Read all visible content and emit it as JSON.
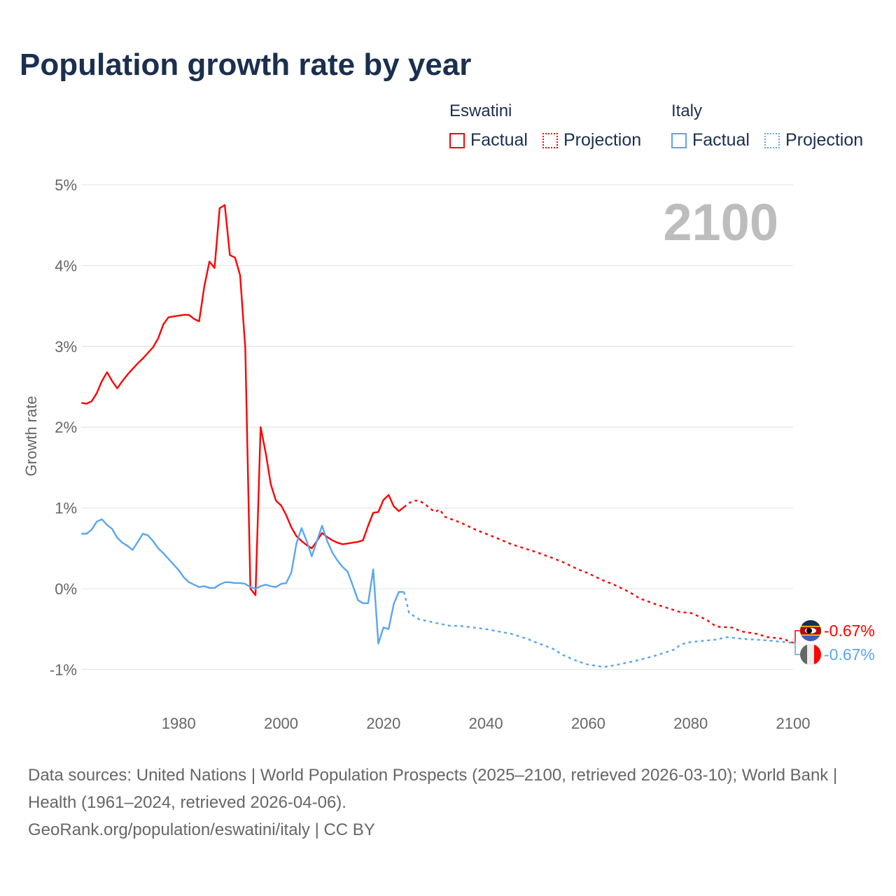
{
  "title": "Population growth rate by year",
  "legend": {
    "groups": [
      {
        "name": "Eswatini",
        "color": "#ff0000",
        "factual": "Factual",
        "projection": "Projection"
      },
      {
        "name": "Italy",
        "color": "#5aa6ee",
        "factual": "Factual",
        "projection": "Projection"
      }
    ]
  },
  "current_year": "2100",
  "end_labels": [
    {
      "country": "Eswatini",
      "value": "-0.67%",
      "color": "#ff0000"
    },
    {
      "country": "Italy",
      "value": "-0.67%",
      "color": "#5aa6ee"
    }
  ],
  "footer": {
    "sources": "Data sources: United Nations | World Population Prospects (2025–2100, retrieved 2026-03-10); World Bank | Health (1961–2024, retrieved 2026-04-06).",
    "credit": "GeoRank.org/population/eswatini/italy | CC BY"
  },
  "chart_data": {
    "type": "line",
    "title": "Population growth rate by year",
    "xlabel": "",
    "ylabel": "Growth rate",
    "xlim": [
      1961,
      2100
    ],
    "ylim": [
      -1,
      5
    ],
    "x_ticks": [
      "1980",
      "2000",
      "2020",
      "2040",
      "2060",
      "2080",
      "2100"
    ],
    "y_ticks": [
      "-1%",
      "0%",
      "1%",
      "2%",
      "3%",
      "4%",
      "5%"
    ],
    "grid": true,
    "legend_position": "top-right",
    "series": [
      {
        "name": "Eswatini Factual",
        "color": "#ff0000",
        "dashed": false,
        "x": [
          1961,
          1962,
          1963,
          1964,
          1965,
          1966,
          1967,
          1968,
          1969,
          1970,
          1971,
          1972,
          1973,
          1974,
          1975,
          1976,
          1977,
          1978,
          1979,
          1980,
          1981,
          1982,
          1983,
          1984,
          1985,
          1986,
          1987,
          1988,
          1989,
          1990,
          1991,
          1992,
          1993,
          1994,
          1995,
          1996,
          1997,
          1998,
          1999,
          2000,
          2001,
          2002,
          2003,
          2004,
          2005,
          2006,
          2007,
          2008,
          2009,
          2010,
          2011,
          2012,
          2013,
          2014,
          2015,
          2016,
          2017,
          2018,
          2019,
          2020,
          2021,
          2022,
          2023,
          2024
        ],
        "y": [
          2.3,
          2.29,
          2.32,
          2.42,
          2.57,
          2.68,
          2.57,
          2.48,
          2.57,
          2.65,
          2.72,
          2.79,
          2.85,
          2.92,
          2.99,
          3.1,
          3.27,
          3.36,
          3.37,
          3.38,
          3.39,
          3.39,
          3.34,
          3.31,
          3.74,
          4.05,
          3.97,
          4.71,
          4.75,
          4.13,
          4.1,
          3.88,
          2.98,
          0.0,
          -0.08,
          2.0,
          1.68,
          1.29,
          1.09,
          1.03,
          0.91,
          0.76,
          0.65,
          0.59,
          0.54,
          0.5,
          0.59,
          0.69,
          0.64,
          0.6,
          0.57,
          0.55,
          0.56,
          0.57,
          0.58,
          0.6,
          0.78,
          0.94,
          0.95,
          1.1,
          1.16,
          1.02,
          0.96,
          1.01
        ]
      },
      {
        "name": "Eswatini Projection",
        "color": "#ff0000",
        "dashed": true,
        "x": [
          2024,
          2025,
          2026,
          2027,
          2028,
          2029,
          2030,
          2031,
          2032,
          2035,
          2038,
          2040,
          2042,
          2045,
          2048,
          2050,
          2053,
          2055,
          2058,
          2060,
          2063,
          2065,
          2068,
          2070,
          2073,
          2075,
          2078,
          2080,
          2083,
          2085,
          2088,
          2090,
          2093,
          2095,
          2098,
          2100
        ],
        "y": [
          1.01,
          1.06,
          1.09,
          1.09,
          1.05,
          1.0,
          0.95,
          0.98,
          0.89,
          0.82,
          0.73,
          0.68,
          0.63,
          0.55,
          0.49,
          0.45,
          0.38,
          0.33,
          0.24,
          0.19,
          0.1,
          0.05,
          -0.04,
          -0.12,
          -0.19,
          -0.23,
          -0.29,
          -0.3,
          -0.38,
          -0.47,
          -0.48,
          -0.53,
          -0.56,
          -0.6,
          -0.62,
          -0.67
        ]
      },
      {
        "name": "Italy Factual",
        "color": "#5aa6ee",
        "dashed": false,
        "x": [
          1961,
          1962,
          1963,
          1964,
          1965,
          1966,
          1967,
          1968,
          1969,
          1970,
          1971,
          1972,
          1973,
          1974,
          1975,
          1976,
          1977,
          1978,
          1979,
          1980,
          1981,
          1982,
          1983,
          1984,
          1985,
          1986,
          1987,
          1988,
          1989,
          1990,
          1991,
          1992,
          1993,
          1994,
          1995,
          1996,
          1997,
          1998,
          1999,
          2000,
          2001,
          2002,
          2003,
          2004,
          2005,
          2006,
          2007,
          2008,
          2009,
          2010,
          2011,
          2012,
          2013,
          2014,
          2015,
          2016,
          2017,
          2018,
          2019,
          2020,
          2021,
          2022,
          2023,
          2024
        ],
        "y": [
          0.68,
          0.68,
          0.73,
          0.83,
          0.86,
          0.79,
          0.74,
          0.63,
          0.57,
          0.53,
          0.48,
          0.58,
          0.68,
          0.66,
          0.59,
          0.5,
          0.44,
          0.37,
          0.3,
          0.23,
          0.14,
          0.08,
          0.05,
          0.02,
          0.03,
          0.01,
          0.01,
          0.05,
          0.08,
          0.08,
          0.07,
          0.07,
          0.06,
          0.02,
          0.0,
          0.03,
          0.05,
          0.03,
          0.02,
          0.06,
          0.07,
          0.2,
          0.56,
          0.75,
          0.59,
          0.4,
          0.59,
          0.78,
          0.59,
          0.45,
          0.35,
          0.27,
          0.21,
          0.04,
          -0.14,
          -0.18,
          -0.18,
          0.24,
          -0.68,
          -0.48,
          -0.5,
          -0.19,
          -0.04,
          -0.04
        ]
      },
      {
        "name": "Italy Projection",
        "color": "#5aa6ee",
        "dashed": true,
        "x": [
          2024,
          2025,
          2027,
          2030,
          2033,
          2035,
          2040,
          2045,
          2048,
          2050,
          2053,
          2055,
          2058,
          2060,
          2063,
          2065,
          2068,
          2070,
          2073,
          2075,
          2077,
          2078,
          2080,
          2085,
          2087,
          2090,
          2095,
          2100
        ],
        "y": [
          -0.04,
          -0.3,
          -0.38,
          -0.42,
          -0.46,
          -0.46,
          -0.5,
          -0.56,
          -0.62,
          -0.67,
          -0.74,
          -0.82,
          -0.9,
          -0.94,
          -0.97,
          -0.95,
          -0.91,
          -0.88,
          -0.83,
          -0.79,
          -0.75,
          -0.69,
          -0.66,
          -0.63,
          -0.6,
          -0.62,
          -0.64,
          -0.67
        ]
      }
    ]
  }
}
